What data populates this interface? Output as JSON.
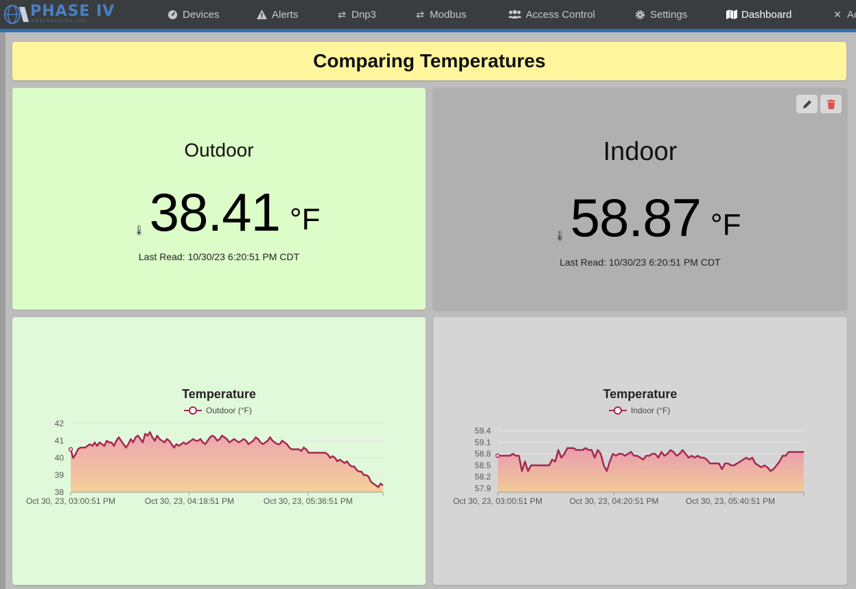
{
  "nav": {
    "logo_text": "PHASE IV",
    "logo_sub": "ENGINEERING INC",
    "items": [
      {
        "label": "Devices",
        "icon": "dashboard-gauge-icon"
      },
      {
        "label": "Alerts",
        "icon": "warning-icon"
      },
      {
        "label": "Dnp3",
        "icon": "exchange-icon"
      },
      {
        "label": "Modbus",
        "icon": "exchange-icon"
      },
      {
        "label": "Access Control",
        "icon": "users-icon"
      },
      {
        "label": "Settings",
        "icon": "gear-icon"
      },
      {
        "label": "Dashboard",
        "icon": "map-icon",
        "active": true
      },
      {
        "label": "Ac",
        "icon": "tools-icon"
      }
    ]
  },
  "page": {
    "title": "Comparing Temperatures"
  },
  "outdoor": {
    "label": "Outdoor",
    "value": "38.41",
    "unit": "°F",
    "last_read": "Last Read: 10/30/23 6:20:51 PM CDT",
    "background": "#dcfcc8"
  },
  "indoor": {
    "label": "Indoor",
    "value": "58.87",
    "unit": "°F",
    "last_read": "Last Read: 10/30/23 6:20:51 PM CDT",
    "background": "#b0b0b0",
    "actions": [
      "edit-pencil-icon",
      "delete-trash-icon"
    ]
  },
  "chart_data": [
    {
      "type": "area",
      "title": "Temperature",
      "series": [
        {
          "name": "Outdoor (°F)",
          "color": "#a3284f"
        }
      ],
      "x_ticks": [
        "Oct 30, 23, 03:00:51 PM",
        "Oct 30, 23, 04:18:51 PM",
        "Oct 30, 23, 05:36:51 PM"
      ],
      "y_ticks": [
        "42",
        "41",
        "40",
        "39",
        "38"
      ],
      "ylim": [
        38,
        42
      ],
      "xlim": [
        0,
        205
      ],
      "values": [
        40.5,
        40.0,
        40.2,
        40.5,
        40.6,
        40.6,
        40.6,
        40.7,
        40.8,
        40.7,
        40.9,
        40.7,
        40.9,
        40.8,
        40.7,
        41.0,
        40.9,
        40.9,
        40.7,
        41.0,
        41.2,
        41.0,
        40.8,
        40.6,
        40.8,
        41.1,
        40.9,
        41.2,
        41.3,
        41.1,
        40.9,
        41.4,
        41.3,
        41.5,
        41.2,
        41.0,
        41.3,
        41.1,
        41.0,
        40.9,
        41.1,
        41.0,
        40.8,
        40.6,
        40.8,
        40.7,
        40.8,
        40.9,
        40.8,
        40.9,
        41.0,
        41.1,
        41.0,
        41.0,
        41.1,
        40.9,
        40.8,
        41.0,
        41.2,
        41.3,
        41.2,
        41.0,
        41.1,
        41.3,
        41.2,
        41.1,
        40.9,
        41.0,
        41.1,
        41.0,
        40.9,
        41.0,
        41.1,
        41.0,
        40.8,
        40.9,
        41.0,
        41.2,
        41.1,
        40.9,
        40.8,
        40.9,
        41.0,
        41.2,
        41.0,
        40.9,
        40.8,
        40.8,
        41.0,
        40.9,
        40.8,
        40.6,
        40.5,
        40.5,
        40.5,
        40.5,
        40.4,
        40.6,
        40.5,
        40.3,
        40.3,
        40.3,
        40.3,
        40.3,
        40.3,
        40.3,
        40.3,
        40.2,
        40.0,
        40.1,
        40.0,
        39.8,
        39.9,
        39.8,
        39.7,
        39.8,
        39.6,
        39.5,
        39.5,
        39.3,
        39.2,
        39.2,
        39.0,
        39.0,
        38.9,
        38.6,
        38.5,
        38.4,
        38.3,
        38.5,
        38.4
      ]
    },
    {
      "type": "area",
      "title": "Temperature",
      "series": [
        {
          "name": "Indoor (°F)",
          "color": "#a3284f"
        }
      ],
      "x_ticks": [
        "Oct 30, 23, 03:00:51 PM",
        "Oct 30, 23, 04:20:51 PM",
        "Oct 30, 23, 05:40:51 PM"
      ],
      "y_ticks": [
        "59.4",
        "59.1",
        "58.8",
        "58.5",
        "58.2",
        "57.9"
      ],
      "ylim": [
        57.8,
        59.5
      ],
      "xlim": [
        0,
        200
      ],
      "values": [
        58.75,
        58.75,
        58.75,
        58.75,
        58.75,
        58.8,
        58.75,
        58.75,
        58.35,
        58.6,
        58.35,
        58.5,
        58.5,
        58.5,
        58.5,
        58.5,
        58.5,
        58.5,
        58.65,
        58.6,
        58.9,
        58.7,
        58.8,
        58.95,
        58.95,
        58.95,
        58.9,
        58.9,
        58.9,
        58.95,
        58.9,
        58.9,
        58.7,
        58.9,
        58.8,
        58.5,
        58.35,
        58.6,
        58.8,
        58.75,
        58.8,
        58.8,
        58.75,
        58.8,
        58.85,
        58.75,
        58.75,
        58.7,
        58.65,
        58.75,
        58.75,
        58.8,
        58.8,
        58.7,
        58.85,
        58.75,
        58.8,
        58.9,
        58.85,
        58.75,
        58.8,
        58.9,
        58.8,
        58.7,
        58.75,
        58.7,
        58.75,
        58.7,
        58.7,
        58.65,
        58.55,
        58.55,
        58.55,
        58.55,
        58.4,
        58.55,
        58.55,
        58.5,
        58.5,
        58.55,
        58.6,
        58.65,
        58.7,
        58.65,
        58.7,
        58.55,
        58.5,
        58.45,
        58.5,
        58.45,
        58.35,
        58.4,
        58.5,
        58.6,
        58.75,
        58.75,
        58.85,
        58.85,
        58.85,
        58.85,
        58.85,
        58.85
      ]
    }
  ]
}
